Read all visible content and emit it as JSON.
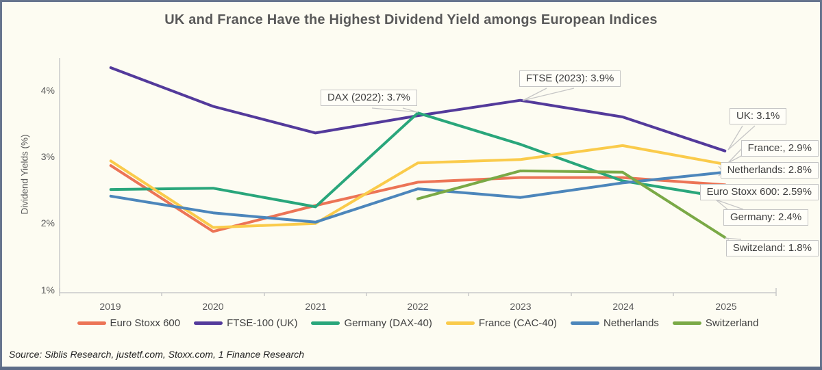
{
  "chart_data": {
    "type": "line",
    "title": "UK and France Have the Highest Dividend Yield amongs European Indices",
    "ylabel": "Dividend Yields (%)",
    "xlabel": "",
    "x_labels": [
      "2019",
      "2020",
      "2021",
      "2022",
      "2023",
      "2024",
      "2025"
    ],
    "y_ticks": [
      "4%",
      "3%",
      "2%",
      "1%"
    ],
    "y_tick_values": [
      4,
      3,
      2,
      1
    ],
    "ylim": [
      1.0,
      4.5
    ],
    "grid": false,
    "legend_position": "bottom",
    "series": [
      {
        "name": "Euro Stoxx 600",
        "color": "#EC7456",
        "values": [
          2.88,
          1.89,
          2.28,
          2.63,
          2.7,
          2.7,
          2.59
        ]
      },
      {
        "name": "FTSE-100 (UK)",
        "color": "#533A9B",
        "values": [
          4.35,
          3.77,
          3.37,
          3.63,
          3.86,
          3.61,
          3.1
        ]
      },
      {
        "name": "Germany (DAX-40)",
        "color": "#29A67B",
        "values": [
          2.52,
          2.54,
          2.26,
          3.67,
          3.2,
          2.65,
          2.4
        ]
      },
      {
        "name": "France (CAC-40)",
        "color": "#FACB4B",
        "values": [
          2.95,
          1.95,
          2.01,
          2.92,
          2.97,
          3.18,
          2.9
        ]
      },
      {
        "name": "Netherlands",
        "color": "#4C86BB",
        "values": [
          2.42,
          2.17,
          2.03,
          2.53,
          2.4,
          2.62,
          2.78
        ]
      },
      {
        "name": "Switzerland",
        "color": "#7AA946",
        "values": [
          null,
          null,
          null,
          2.38,
          2.8,
          2.78,
          1.8
        ]
      }
    ]
  },
  "annotations": {
    "dax": "DAX (2022): 3.7%",
    "ftse": "FTSE (2023): 3.9%",
    "uk": "UK: 3.1%",
    "france": "France:, 2.9%",
    "netherlands": "Netherlands: 2.8%",
    "euro_stoxx": "Euro Stoxx 600: 2.59%",
    "germany": "Germany: 2.4%",
    "switzerland": "Switzeland: 1.8%"
  },
  "source": "Source: Siblis Research, justetf.com, Stoxx.com, 1 Finance Research",
  "colors": {
    "frame": "#67758E",
    "bottom_bar": "#5D6C87",
    "background": "#FDFCF2",
    "axis": "#C9C9C9",
    "title_text": "#595959"
  }
}
